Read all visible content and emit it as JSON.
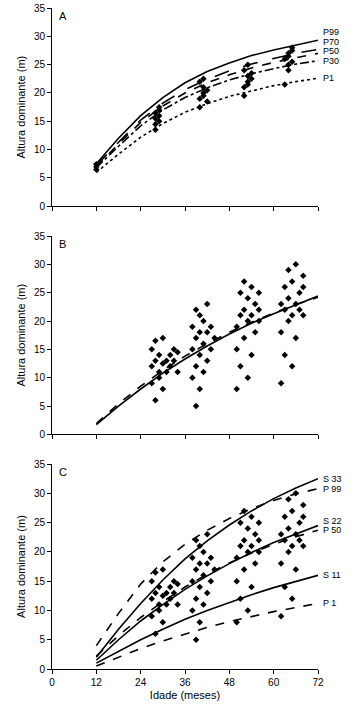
{
  "chart_data": [
    {
      "type": "line",
      "title": "A",
      "ylabel": "Altura dominante (m)",
      "xlim": [
        0,
        72
      ],
      "xticks": [
        0,
        12,
        24,
        36,
        48,
        60,
        72
      ],
      "ylim": [
        0,
        35
      ],
      "yticks": [
        0,
        5,
        10,
        15,
        20,
        25,
        30,
        35
      ],
      "grid": false,
      "tick_labels": "y",
      "series": [
        {
          "type": "scatter",
          "marker": "diamond",
          "color": "#000000",
          "x": [
            12,
            12,
            12,
            28,
            28,
            28,
            29,
            29,
            29,
            28,
            29,
            40,
            40,
            41,
            41,
            40,
            41,
            42,
            42,
            41,
            52,
            52,
            53,
            53,
            52,
            53,
            54,
            54,
            53,
            63,
            64,
            64,
            63,
            64,
            65,
            65,
            64,
            65
          ],
          "values": [
            6.5,
            7,
            7.4,
            13.5,
            14.5,
            15.5,
            16,
            17,
            15,
            16.5,
            17.5,
            17.5,
            19,
            20,
            21,
            22,
            22.5,
            18.5,
            20.5,
            19.5,
            19.5,
            21,
            22,
            23,
            24,
            25,
            23.5,
            22.5,
            21.5,
            21.5,
            24,
            25,
            26,
            27,
            27.5,
            28,
            26.5,
            25.5
          ]
        },
        {
          "type": "line",
          "name": "P99",
          "line_style": "solid",
          "color": "#000000",
          "x": [
            12,
            18,
            24,
            30,
            36,
            42,
            48,
            54,
            60,
            66,
            72
          ],
          "values": [
            7.5,
            12,
            16,
            19.2,
            21.8,
            23.8,
            25.3,
            26.6,
            27.6,
            28.5,
            29.3
          ]
        },
        {
          "type": "line",
          "name": "P70",
          "line_style": "longdash",
          "color": "#000000",
          "x": [
            12,
            18,
            24,
            30,
            36,
            42,
            48,
            54,
            60,
            66,
            72
          ],
          "values": [
            7.2,
            11.3,
            15.2,
            18.2,
            20.6,
            22.4,
            23.9,
            25.1,
            26.1,
            27,
            27.7
          ]
        },
        {
          "type": "line",
          "name": "P50",
          "line_style": "dash",
          "color": "#000000",
          "x": [
            12,
            18,
            24,
            30,
            36,
            42,
            48,
            54,
            60,
            66,
            72
          ],
          "values": [
            7,
            11,
            14.8,
            17.7,
            20,
            21.8,
            23.2,
            24.4,
            25.4,
            26.2,
            27
          ]
        },
        {
          "type": "line",
          "name": "P30",
          "line_style": "dashdot",
          "color": "#000000",
          "x": [
            12,
            18,
            24,
            30,
            36,
            42,
            48,
            54,
            60,
            66,
            72
          ],
          "values": [
            6.8,
            10.6,
            14.2,
            17,
            19.2,
            20.9,
            22.3,
            23.4,
            24.3,
            25.1,
            25.7
          ]
        },
        {
          "type": "line",
          "name": "P1",
          "line_style": "dot",
          "color": "#000000",
          "x": [
            12,
            18,
            24,
            30,
            36,
            42,
            48,
            54,
            60,
            66,
            72
          ],
          "values": [
            6,
            9.2,
            12.2,
            14.6,
            16.6,
            18.1,
            19.4,
            20.4,
            21.3,
            22,
            22.6
          ]
        }
      ]
    },
    {
      "type": "line",
      "title": "B",
      "ylabel": "Altura dominante (m)",
      "xlim": [
        0,
        72
      ],
      "xticks": [
        0,
        12,
        24,
        36,
        48,
        60,
        72
      ],
      "ylim": [
        0,
        35
      ],
      "yticks": [
        0,
        5,
        10,
        15,
        20,
        25,
        30,
        35
      ],
      "grid": false,
      "tick_labels": "y",
      "series": [
        {
          "type": "scatter",
          "marker": "diamond",
          "color": "#000000",
          "x": [
            27,
            27,
            27,
            28,
            28,
            28,
            29,
            29,
            29,
            30,
            30,
            30,
            31,
            31,
            32,
            32,
            33,
            33,
            34,
            34,
            38,
            38,
            38,
            39,
            39,
            39,
            39,
            40,
            40,
            40,
            40,
            41,
            41,
            41,
            42,
            42,
            42,
            43,
            43,
            44,
            50,
            50,
            50,
            51,
            51,
            51,
            52,
            52,
            52,
            53,
            53,
            53,
            54,
            54,
            54,
            55,
            55,
            56,
            56,
            56,
            62,
            62,
            62,
            63,
            63,
            63,
            64,
            64,
            64,
            65,
            65,
            65,
            66,
            66,
            66,
            67,
            67,
            68,
            68,
            68
          ],
          "values": [
            12,
            15,
            9,
            16.5,
            13,
            6,
            11,
            14,
            10,
            12.5,
            17,
            8,
            13,
            11,
            14,
            12,
            15,
            13,
            11,
            14.5,
            10,
            15,
            19,
            5,
            12,
            17,
            22,
            8,
            14,
            18,
            21,
            11,
            16,
            20,
            13,
            18,
            23,
            15,
            19,
            17,
            8,
            15,
            19,
            12,
            21,
            25,
            17,
            22,
            27,
            10,
            20,
            24,
            14,
            21,
            26,
            18,
            23,
            20,
            25,
            22,
            9,
            18,
            23,
            14,
            22,
            26,
            20,
            24,
            29,
            12,
            21,
            27,
            17,
            23,
            30,
            22,
            25,
            21,
            26,
            28
          ]
        },
        {
          "type": "line",
          "line_style": "solid",
          "color": "#000000",
          "x": [
            12,
            18,
            24,
            30,
            36,
            42,
            48,
            54,
            60,
            66,
            72
          ],
          "values": [
            1.7,
            5,
            8,
            10.8,
            13.3,
            15.6,
            17.7,
            19.6,
            21.3,
            22.9,
            24.4
          ]
        },
        {
          "type": "line",
          "line_style": "dash",
          "color": "#000000",
          "x": [
            12,
            18,
            24,
            30,
            36,
            42,
            48,
            54,
            60,
            66,
            72
          ],
          "values": [
            1.9,
            5.4,
            8.5,
            11.3,
            13.8,
            16,
            18,
            19.8,
            21.4,
            22.9,
            24.2
          ]
        }
      ]
    },
    {
      "type": "line",
      "title": "C",
      "xlabel": "Idade (meses)",
      "ylabel": "Altura dominante (m)",
      "xlim": [
        0,
        72
      ],
      "xticks": [
        0,
        12,
        24,
        36,
        48,
        60,
        72
      ],
      "ylim": [
        0,
        35
      ],
      "yticks": [
        0,
        5,
        10,
        15,
        20,
        25,
        30,
        35
      ],
      "grid": false,
      "tick_labels": true,
      "series": [
        {
          "type": "scatter",
          "marker": "diamond",
          "color": "#000000",
          "x": [
            27,
            27,
            27,
            28,
            28,
            28,
            29,
            29,
            29,
            30,
            30,
            30,
            31,
            31,
            32,
            32,
            33,
            33,
            34,
            34,
            38,
            38,
            38,
            39,
            39,
            39,
            39,
            40,
            40,
            40,
            40,
            41,
            41,
            41,
            42,
            42,
            42,
            43,
            43,
            44,
            50,
            50,
            50,
            51,
            51,
            51,
            52,
            52,
            52,
            53,
            53,
            53,
            54,
            54,
            54,
            55,
            55,
            56,
            56,
            56,
            62,
            62,
            62,
            63,
            63,
            63,
            64,
            64,
            64,
            65,
            65,
            65,
            66,
            66,
            66,
            67,
            67,
            68,
            68,
            68
          ],
          "values": [
            12,
            15,
            9,
            16.5,
            13,
            6,
            11,
            14,
            10,
            12.5,
            17,
            8,
            13,
            11,
            14,
            12,
            15,
            13,
            11,
            14.5,
            10,
            15,
            19,
            5,
            12,
            17,
            22,
            8,
            14,
            18,
            21,
            11,
            16,
            20,
            13,
            18,
            23,
            15,
            19,
            17,
            8,
            15,
            19,
            12,
            21,
            25,
            17,
            22,
            27,
            10,
            20,
            24,
            14,
            21,
            26,
            18,
            23,
            20,
            25,
            22,
            9,
            18,
            23,
            14,
            22,
            26,
            20,
            24,
            29,
            12,
            21,
            27,
            17,
            23,
            30,
            22,
            25,
            21,
            26,
            28
          ]
        },
        {
          "type": "line",
          "name": "S 33",
          "line_style": "solid",
          "color": "#000000",
          "x": [
            12,
            18,
            24,
            30,
            36,
            42,
            48,
            54,
            60,
            66,
            72
          ],
          "values": [
            2,
            6.8,
            11.2,
            15.2,
            18.8,
            21.9,
            24.6,
            27,
            29.1,
            30.9,
            32.5
          ]
        },
        {
          "type": "line",
          "name": "P 99",
          "line_style": "dash",
          "color": "#000000",
          "x": [
            12,
            18,
            24,
            30,
            36,
            42,
            48,
            54,
            60,
            66,
            72
          ],
          "values": [
            4,
            9.5,
            14.5,
            18.3,
            21.3,
            23.7,
            25.7,
            27.4,
            28.8,
            29.9,
            30.8
          ]
        },
        {
          "type": "line",
          "name": "S 22",
          "line_style": "solid",
          "color": "#000000",
          "x": [
            12,
            18,
            24,
            30,
            36,
            42,
            48,
            54,
            60,
            66,
            72
          ],
          "values": [
            1.5,
            5,
            8.2,
            11,
            13.6,
            15.9,
            18,
            19.9,
            21.6,
            23.1,
            24.5
          ]
        },
        {
          "type": "line",
          "name": "P 50",
          "line_style": "dash",
          "color": "#000000",
          "x": [
            12,
            18,
            24,
            30,
            36,
            42,
            48,
            54,
            60,
            66,
            72
          ],
          "values": [
            2.2,
            5.7,
            8.8,
            11.5,
            14,
            16.2,
            18.1,
            19.8,
            21.3,
            22.6,
            23.7
          ]
        },
        {
          "type": "line",
          "name": "S 11",
          "line_style": "solid",
          "color": "#000000",
          "x": [
            12,
            18,
            24,
            30,
            36,
            42,
            48,
            54,
            60,
            66,
            72
          ],
          "values": [
            1,
            3,
            5,
            6.8,
            8.5,
            10,
            11.4,
            12.7,
            13.9,
            15,
            16
          ]
        },
        {
          "type": "line",
          "name": "P 1",
          "line_style": "dash",
          "color": "#000000",
          "x": [
            12,
            18,
            24,
            30,
            36,
            42,
            48,
            54,
            60,
            66,
            72
          ],
          "values": [
            0.5,
            2,
            3.5,
            4.8,
            6,
            7.1,
            8.1,
            9,
            9.8,
            10.5,
            11.2
          ]
        }
      ]
    }
  ]
}
